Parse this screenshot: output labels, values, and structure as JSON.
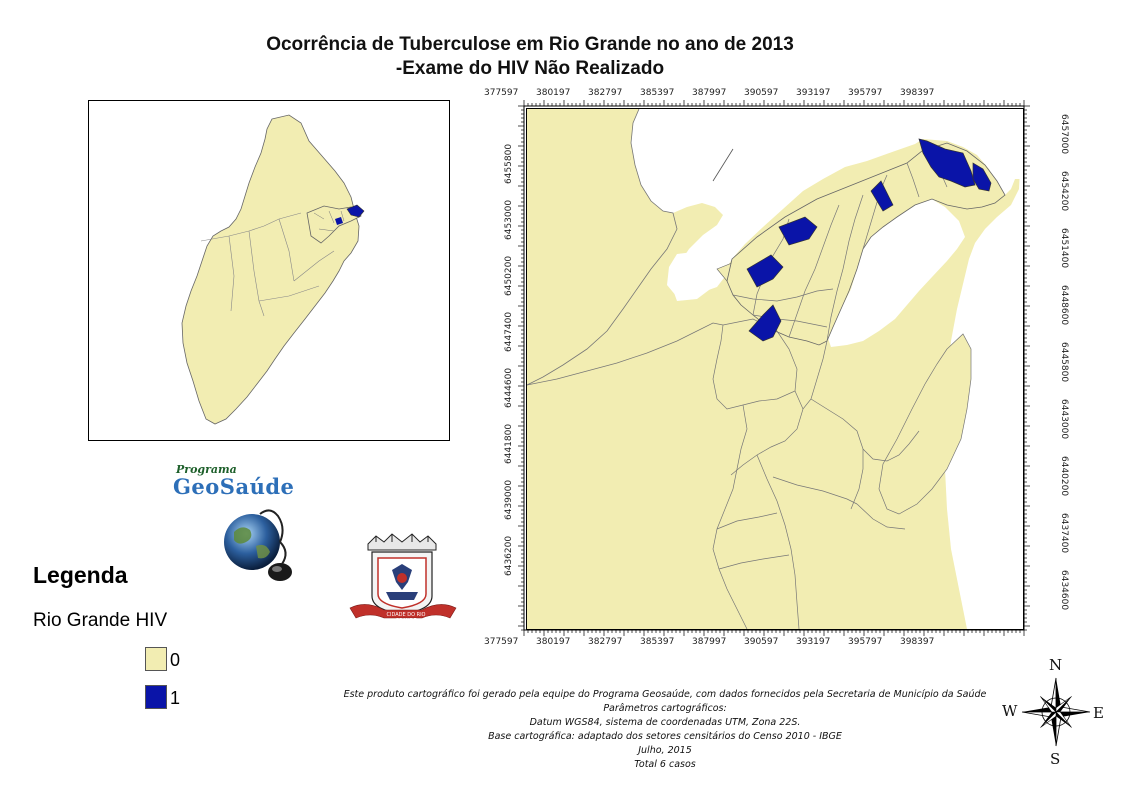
{
  "title": {
    "line1": "Ocorrência de Tuberculose em Rio Grande no ano de 2013",
    "line2": "-Exame do HIV Não Realizado"
  },
  "map": {
    "x_ticks": [
      "377597",
      "380197",
      "382797",
      "385397",
      "387997",
      "390597",
      "393197",
      "395797",
      "398397"
    ],
    "y_ticks_left": [
      "6455800",
      "6453000",
      "6450200",
      "6447400",
      "6444600",
      "6441800",
      "6439000",
      "6436200"
    ],
    "y_ticks_right": [
      "6457000",
      "6454200",
      "6451400",
      "6448600",
      "6445800",
      "6443000",
      "6440200",
      "6437400",
      "6434600"
    ]
  },
  "legend": {
    "title": "Legenda",
    "layer": "Rio Grande HIV",
    "items": [
      {
        "label": "0",
        "color": "#F2EDB2"
      },
      {
        "label": "1",
        "color": "#0A14A8"
      }
    ]
  },
  "logo": {
    "program_small": "Programa",
    "program_name": "GeoSaúde",
    "crest_banner": "CIDADE DO RIO GRANDE"
  },
  "credits": {
    "line1": "Este produto cartográfico foi gerado pela equipe do Programa Geosaúde, com dados fornecidos pela Secretaria de Município da Saúde",
    "line2": "Parâmetros cartográficos:",
    "line3": "Datum WGS84, sistema de coordenadas UTM, Zona 22S.",
    "line4": "Base cartográfica: adaptado dos setores censitários do Censo 2010 - IBGE",
    "line5": "Julho, 2015",
    "line6": "Total 6 casos"
  },
  "compass": {
    "n": "N",
    "s": "S",
    "e": "E",
    "w": "W"
  },
  "colors": {
    "land": "#F2EDB2",
    "highlight": "#0A14A8",
    "water": "#FFFFFF"
  }
}
